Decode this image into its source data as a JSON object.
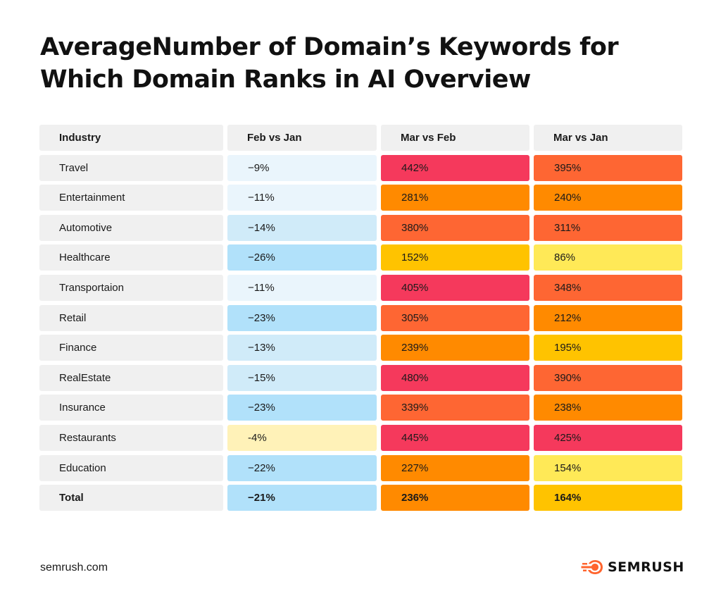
{
  "title": "AverageNumber of Domain’s Keywords for Which Domain Ranks in AI Overview",
  "footer": {
    "site": "semrush.com",
    "brand": "SEMRUSH",
    "brand_color": "#ff642d"
  },
  "table": {
    "headers": [
      "Industry",
      "Feb vs Jan",
      "Mar vs Feb",
      "Mar vs Jan"
    ],
    "rows": [
      {
        "industry": "Travel",
        "feb_jan": "−9%",
        "mar_feb": "442%",
        "mar_jan": "395%",
        "colors": [
          "#eaf5fc",
          "#f5395c",
          "#fe6633"
        ]
      },
      {
        "industry": "Entertainment",
        "feb_jan": "−11%",
        "mar_feb": "281%",
        "mar_jan": "240%",
        "colors": [
          "#eaf5fc",
          "#ff8a00",
          "#ff8a00"
        ]
      },
      {
        "industry": "Automotive",
        "feb_jan": "−14%",
        "mar_feb": "380%",
        "mar_jan": "311%",
        "colors": [
          "#d0ebf9",
          "#fe6633",
          "#fe6633"
        ]
      },
      {
        "industry": "Healthcare",
        "feb_jan": "−26%",
        "mar_feb": "152%",
        "mar_jan": "86%",
        "colors": [
          "#b1e1fa",
          "#ffc300",
          "#ffe957"
        ]
      },
      {
        "industry": "Transportaion",
        "feb_jan": "−11%",
        "mar_feb": "405%",
        "mar_jan": "348%",
        "colors": [
          "#eaf5fc",
          "#f5395c",
          "#fe6633"
        ]
      },
      {
        "industry": "Retail",
        "feb_jan": "−23%",
        "mar_feb": "305%",
        "mar_jan": "212%",
        "colors": [
          "#b1e1fa",
          "#fe6633",
          "#ff8a00"
        ]
      },
      {
        "industry": "Finance",
        "feb_jan": "−13%",
        "mar_feb": "239%",
        "mar_jan": "195%",
        "colors": [
          "#d0ebf9",
          "#ff8a00",
          "#ffc300"
        ]
      },
      {
        "industry": "RealEstate",
        "feb_jan": "−15%",
        "mar_feb": "480%",
        "mar_jan": "390%",
        "colors": [
          "#d0ebf9",
          "#f5395c",
          "#fe6633"
        ]
      },
      {
        "industry": "Insurance",
        "feb_jan": "−23%",
        "mar_feb": "339%",
        "mar_jan": "238%",
        "colors": [
          "#b1e1fa",
          "#fe6633",
          "#ff8a00"
        ]
      },
      {
        "industry": "Restaurants",
        "feb_jan": "-4%",
        "mar_feb": "445%",
        "mar_jan": "425%",
        "colors": [
          "#fff2b8",
          "#f5395c",
          "#f5395c"
        ]
      },
      {
        "industry": "Education",
        "feb_jan": "−22%",
        "mar_feb": "227%",
        "mar_jan": "154%",
        "colors": [
          "#b1e1fa",
          "#ff8a00",
          "#ffe957"
        ]
      },
      {
        "industry": "Total",
        "feb_jan": "−21%",
        "mar_feb": "236%",
        "mar_jan": "164%",
        "colors": [
          "#b1e1fa",
          "#ff8a00",
          "#ffc300"
        ]
      }
    ]
  },
  "chart_data": {
    "type": "table",
    "columns": [
      "Industry",
      "Feb vs Jan",
      "Mar vs Feb",
      "Mar vs Jan"
    ],
    "rows": [
      [
        "Travel",
        -9,
        442,
        395
      ],
      [
        "Entertainment",
        -11,
        281,
        240
      ],
      [
        "Automotive",
        -14,
        380,
        311
      ],
      [
        "Healthcare",
        -26,
        152,
        86
      ],
      [
        "Transportaion",
        -11,
        405,
        348
      ],
      [
        "Retail",
        -23,
        305,
        212
      ],
      [
        "Finance",
        -13,
        239,
        195
      ],
      [
        "RealEstate",
        -15,
        480,
        390
      ],
      [
        "Insurance",
        -23,
        339,
        238
      ],
      [
        "Restaurants",
        -4,
        445,
        425
      ],
      [
        "Education",
        -22,
        227,
        154
      ],
      [
        "Total",
        -21,
        236,
        164
      ]
    ]
  }
}
